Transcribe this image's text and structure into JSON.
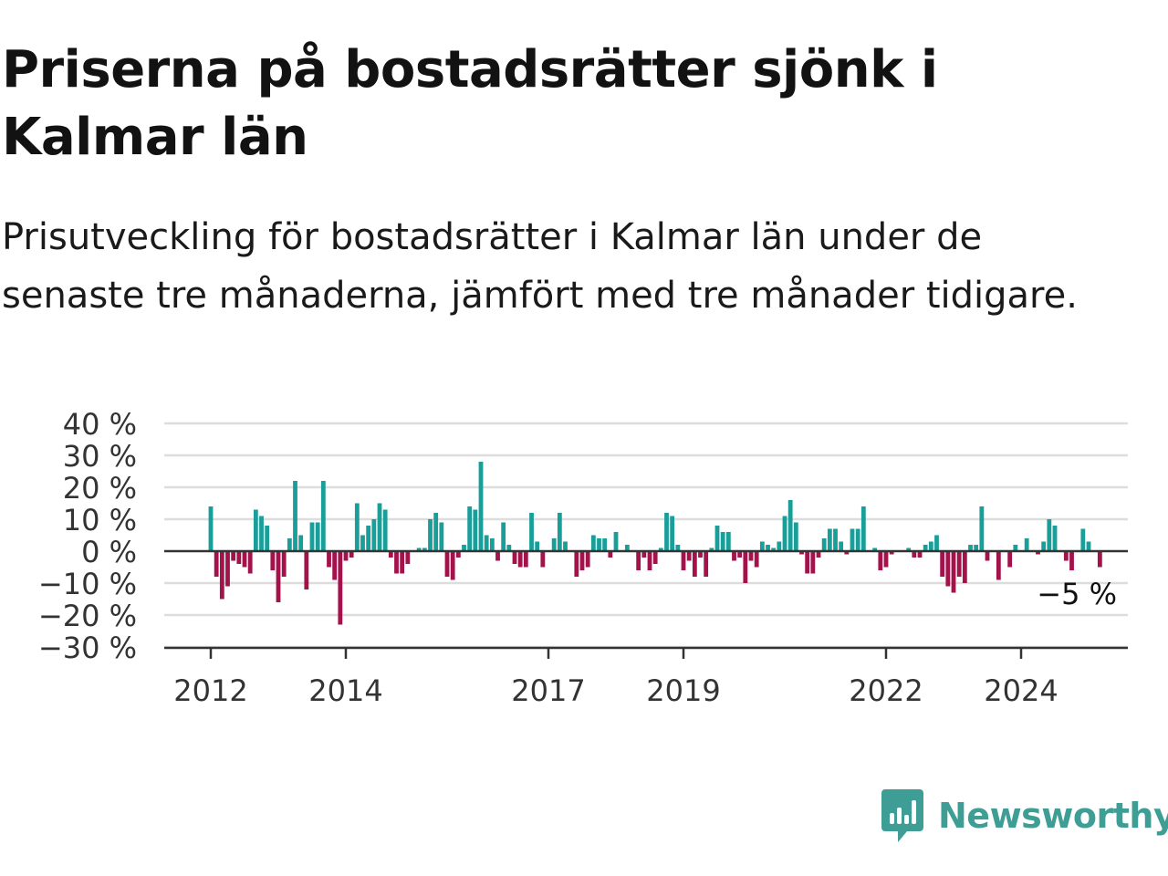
{
  "header": {
    "title": "Priserna på bostadsrätter sjönk i Kalmar län",
    "subtitle": "Prisutveckling för bostadsrätter i Kalmar län under de senaste tre månaderna, jämfört med tre månader tidigare."
  },
  "brand": {
    "name": "Newsworthy",
    "icon": "newsworthy-logo-icon"
  },
  "colors": {
    "positive": "#1a9e99",
    "negative": "#a3124b",
    "grid": "#dddddd",
    "axis": "#333333",
    "text": "#333333"
  },
  "chart_data": {
    "type": "bar",
    "title": "Priserna på bostadsrätter sjönk i Kalmar län",
    "subtitle": "Prisutveckling för bostadsrätter i Kalmar län under de senaste tre månaderna, jämfört med tre månader tidigare.",
    "xlabel": "",
    "ylabel": "",
    "y_unit": "%",
    "ylim": [
      -30,
      40
    ],
    "yticks": [
      40,
      30,
      20,
      10,
      0,
      -10,
      -20,
      -30
    ],
    "ytick_labels": [
      "40 %",
      "30 %",
      "20 %",
      "10 %",
      "0 %",
      "−10 %",
      "−20 %",
      "−30 %"
    ],
    "xticks": [
      "2012",
      "2014",
      "2017",
      "2019",
      "2022",
      "2024"
    ],
    "grid": true,
    "legend": "none",
    "start_month": "2012-01",
    "last_value_label": "−5 %",
    "values": [
      14,
      -8,
      -15,
      -11,
      -3,
      -4,
      -5,
      -7,
      13,
      11,
      8,
      -6,
      -16,
      -8,
      4,
      22,
      5,
      -12,
      9,
      9,
      22,
      -5,
      -9,
      -23,
      -3,
      -2,
      15,
      5,
      8,
      10,
      15,
      13,
      -2,
      -7,
      -7,
      -4,
      0,
      1,
      1,
      10,
      12,
      9,
      -8,
      -9,
      -2,
      2,
      14,
      13,
      28,
      5,
      4,
      -3,
      9,
      2,
      -4,
      -5,
      -5,
      12,
      3,
      -5,
      0,
      4,
      12,
      3,
      0,
      -8,
      -6,
      -5,
      5,
      4,
      4,
      -2,
      6,
      0,
      2,
      0,
      -6,
      -2,
      -6,
      -4,
      1,
      12,
      11,
      2,
      -6,
      -3,
      -8,
      -2,
      -8,
      1,
      8,
      6,
      6,
      -3,
      -2,
      -10,
      -3,
      -5,
      3,
      2,
      1,
      3,
      11,
      16,
      9,
      -1,
      -7,
      -7,
      -2,
      4,
      7,
      7,
      3,
      -1,
      7,
      7,
      14,
      0,
      1,
      -6,
      -5,
      -1,
      0,
      0,
      1,
      -2,
      -2,
      2,
      3,
      5,
      -8,
      -11,
      -13,
      -8,
      -10,
      2,
      2,
      14,
      -3,
      0,
      -9,
      0,
      -5,
      2,
      0,
      4,
      0,
      -1,
      3,
      10,
      8,
      0,
      -3,
      -6,
      0,
      7,
      3,
      0,
      -5
    ]
  }
}
